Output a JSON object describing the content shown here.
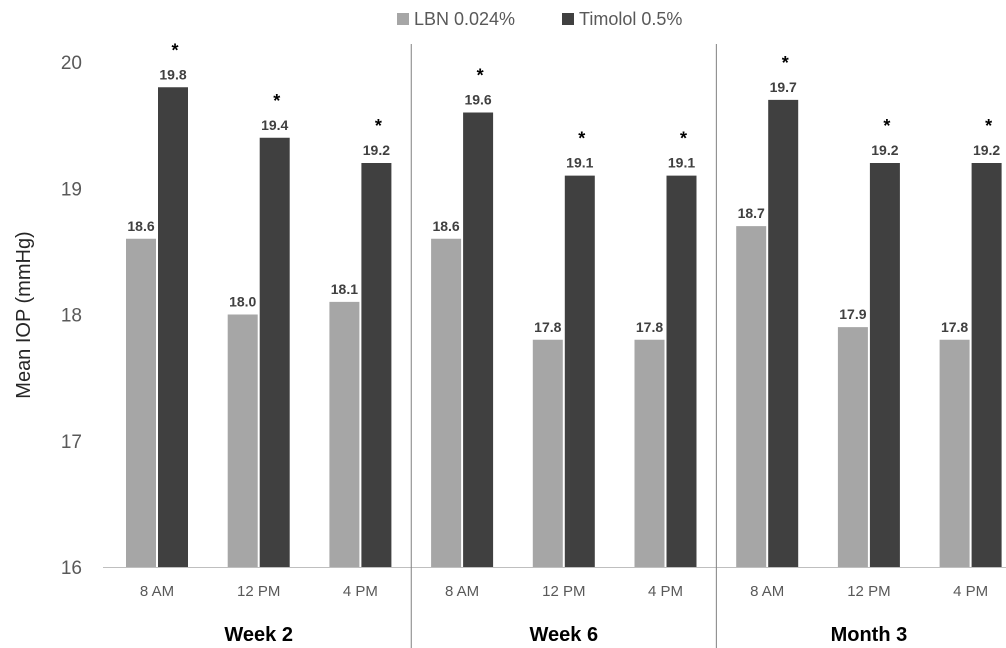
{
  "chart_data": {
    "type": "bar",
    "ylabel": "Mean IOP (mmHg)",
    "ylim": [
      16,
      20
    ],
    "yticks": [
      "16",
      "17",
      "18",
      "19",
      "20"
    ],
    "grid": false,
    "legend_position": "top-center",
    "groups": [
      {
        "label": "Week 2",
        "categories": [
          "8 AM",
          "12 PM",
          "4 PM"
        ]
      },
      {
        "label": "Week 6",
        "categories": [
          "8 AM",
          "12 PM",
          "4 PM"
        ]
      },
      {
        "label": "Month 3",
        "categories": [
          "8 AM",
          "12 PM",
          "4 PM"
        ]
      }
    ],
    "series": [
      {
        "name": "LBN 0.024%",
        "color": "#a6a6a6",
        "values": [
          18.6,
          18.0,
          18.1,
          18.6,
          17.8,
          17.8,
          18.7,
          17.9,
          17.8
        ],
        "labels": [
          "18.6",
          "18.0",
          "18.1",
          "18.6",
          "17.8",
          "17.8",
          "18.7",
          "17.9",
          "17.8"
        ]
      },
      {
        "name": "Timolol 0.5%",
        "color": "#404040",
        "values": [
          19.8,
          19.4,
          19.2,
          19.6,
          19.1,
          19.1,
          19.7,
          19.2,
          19.2
        ],
        "labels": [
          "19.8",
          "19.4",
          "19.2",
          "19.6",
          "19.1",
          "19.1",
          "19.7",
          "19.2",
          "19.2"
        ]
      }
    ],
    "significance_marker": "*",
    "significant": [
      true,
      true,
      true,
      true,
      true,
      true,
      true,
      true,
      true
    ]
  }
}
